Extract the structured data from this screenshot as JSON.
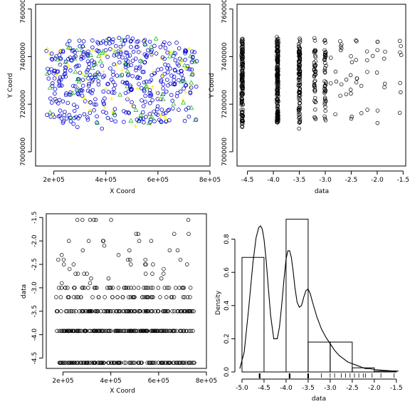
{
  "chart_data": [
    {
      "type": "scatter",
      "xlabel": "X Coord",
      "ylabel": "Y Coord",
      "xlim": [
        130000,
        800000
      ],
      "ylim": [
        6940000,
        7620000
      ],
      "xticks": [
        {
          "v": 200000,
          "label": "2e+05"
        },
        {
          "v": 400000,
          "label": "4e+05"
        },
        {
          "v": 600000,
          "label": "6e+05"
        },
        {
          "v": 800000,
          "label": "8e+05"
        }
      ],
      "yticks": [
        {
          "v": 7000000,
          "label": "7000000"
        },
        {
          "v": 7200000,
          "label": "7200000"
        },
        {
          "v": 7400000,
          "label": "7400000"
        },
        {
          "v": 7600000,
          "label": "7600000"
        }
      ],
      "symbols": {
        "circle": "#0000cc",
        "triangle": "#22bb22",
        "cross": "#ffee00"
      },
      "points": []
    },
    {
      "type": "scatter",
      "xlabel": "data",
      "ylabel": "Y Coord",
      "xlim": [
        -4.7,
        -1.45
      ],
      "ylim": [
        6940000,
        7620000
      ],
      "xticks": [
        {
          "v": -4.5,
          "label": "-4.5"
        },
        {
          "v": -4.0,
          "label": "-4.0"
        },
        {
          "v": -3.5,
          "label": "-3.5"
        },
        {
          "v": -3.0,
          "label": "-3.0"
        },
        {
          "v": -2.5,
          "label": "-2.5"
        },
        {
          "v": -2.0,
          "label": "-2.0"
        },
        {
          "v": -1.5,
          "label": "-1.5"
        }
      ],
      "yticks": [
        {
          "v": 7000000,
          "label": "7000000"
        },
        {
          "v": 7200000,
          "label": "7200000"
        },
        {
          "v": 7400000,
          "label": "7400000"
        },
        {
          "v": 7600000,
          "label": "7600000"
        }
      ],
      "points": []
    },
    {
      "type": "scatter",
      "xlabel": "X Coord",
      "ylabel": "data",
      "xlim": [
        130000,
        800000
      ],
      "ylim": [
        -4.72,
        -1.42
      ],
      "xticks": [
        {
          "v": 200000,
          "label": "2e+05"
        },
        {
          "v": 400000,
          "label": "4e+05"
        },
        {
          "v": 600000,
          "label": "6e+05"
        },
        {
          "v": 800000,
          "label": "8e+05"
        }
      ],
      "yticks": [
        {
          "v": -4.5,
          "label": "-4.5"
        },
        {
          "v": -4.0,
          "label": "-4.0"
        },
        {
          "v": -3.5,
          "label": "-3.5"
        },
        {
          "v": -3.0,
          "label": "-3.0"
        },
        {
          "v": -2.5,
          "label": "-2.5"
        },
        {
          "v": -2.0,
          "label": "-2.0"
        },
        {
          "v": -1.5,
          "label": "-1.5"
        }
      ],
      "points": []
    },
    {
      "type": "bar",
      "subtype": "histogram-with-density",
      "xlabel": "data",
      "ylabel": "Density",
      "xlim": [
        -5.08,
        -1.4
      ],
      "ylim": [
        0,
        0.97
      ],
      "xticks": [
        {
          "v": -5.0,
          "label": "-5.0"
        },
        {
          "v": -4.5,
          "label": "-4.5"
        },
        {
          "v": -4.0,
          "label": "-4.0"
        },
        {
          "v": -3.5,
          "label": "-3.5"
        },
        {
          "v": -3.0,
          "label": "-3.0"
        },
        {
          "v": -2.5,
          "label": "-2.5"
        },
        {
          "v": -2.0,
          "label": "-2.0"
        },
        {
          "v": -1.5,
          "label": "-1.5"
        }
      ],
      "yticks": [
        {
          "v": 0.0,
          "label": "0.0"
        },
        {
          "v": 0.2,
          "label": "0.2"
        },
        {
          "v": 0.4,
          "label": "0.4"
        },
        {
          "v": 0.6,
          "label": "0.6"
        },
        {
          "v": 0.8,
          "label": "0.8"
        }
      ],
      "bins": [
        {
          "from": -5.0,
          "to": -4.5,
          "density": 0.69
        },
        {
          "from": -4.5,
          "to": -4.0,
          "density": 0.0
        },
        {
          "from": -4.0,
          "to": -3.5,
          "density": 0.92
        },
        {
          "from": -3.5,
          "to": -3.0,
          "density": 0.18
        },
        {
          "from": -3.0,
          "to": -2.5,
          "density": 0.18
        },
        {
          "from": -2.5,
          "to": -2.0,
          "density": 0.025
        },
        {
          "from": -2.0,
          "to": -1.5,
          "density": 0.005
        }
      ],
      "density_curve": {
        "x": [
          -5.05,
          -4.95,
          -4.85,
          -4.75,
          -4.68,
          -4.62,
          -4.58,
          -4.54,
          -4.5,
          -4.45,
          -4.4,
          -4.35,
          -4.28,
          -4.2,
          -4.15,
          -4.1,
          -4.05,
          -4.0,
          -3.96,
          -3.92,
          -3.88,
          -3.84,
          -3.8,
          -3.75,
          -3.7,
          -3.65,
          -3.6,
          -3.55,
          -3.5,
          -3.45,
          -3.4,
          -3.3,
          -3.2,
          -3.1,
          -3.0,
          -2.9,
          -2.8,
          -2.7,
          -2.6,
          -2.5,
          -2.4,
          -2.3,
          -2.2,
          -2.1,
          -2.0,
          -1.9,
          -1.8,
          -1.7,
          -1.6,
          -1.5,
          -1.45
        ],
        "y": [
          0.02,
          0.12,
          0.38,
          0.66,
          0.81,
          0.87,
          0.88,
          0.86,
          0.8,
          0.67,
          0.5,
          0.34,
          0.2,
          0.2,
          0.27,
          0.4,
          0.55,
          0.68,
          0.73,
          0.73,
          0.69,
          0.61,
          0.51,
          0.42,
          0.39,
          0.4,
          0.45,
          0.49,
          0.5,
          0.47,
          0.42,
          0.33,
          0.26,
          0.21,
          0.17,
          0.13,
          0.1,
          0.08,
          0.06,
          0.05,
          0.04,
          0.03,
          0.02,
          0.02,
          0.015,
          0.012,
          0.01,
          0.008,
          0.006,
          0.005,
          0.005
        ]
      },
      "rug_major": [
        -4.6,
        -3.92,
        -3.5
      ],
      "rug_minor": [
        -3.2,
        -3.0,
        -2.9,
        -2.75,
        -2.65,
        -2.55,
        -2.45,
        -2.35,
        -2.25,
        -2.2,
        -2.05,
        -1.85,
        -1.55
      ]
    }
  ]
}
